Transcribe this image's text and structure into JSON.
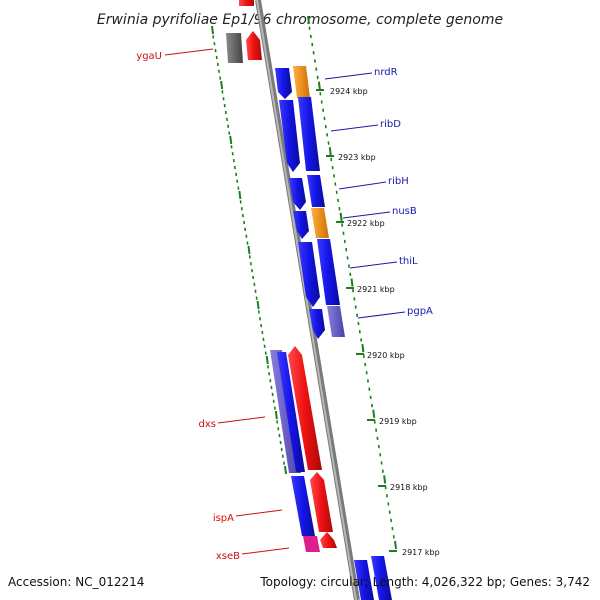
{
  "title": "Erwinia pyrifoliae Ep1/96 chromosome, complete genome",
  "accession_text": "Accession: NC_012214",
  "topology_text": "Topology: circular; Length: 4,026,322 bp; Genes: 3,742",
  "colors": {
    "backbone": "#8a8a8a",
    "tick": "#1e7d1e",
    "plus_strand_label": "#1a1aa8",
    "minus_strand_label": "#cc1111",
    "blue_gene": "#1414e6",
    "red_gene": "#ee1111",
    "orange_gene": "#f0900f",
    "purple_gene": "#6c5fc8",
    "magenta_gene": "#e0208a",
    "gray_gene": "#666666"
  },
  "kbp_markers": [
    "2924 kbp",
    "2923 kbp",
    "2922 kbp",
    "2921 kbp",
    "2920 kbp",
    "2919 kbp",
    "2918 kbp",
    "2917 kbp"
  ],
  "genes_right": [
    {
      "name": "nrdR",
      "color": "#1a1aa8"
    },
    {
      "name": "ribD",
      "color": "#1a1aa8"
    },
    {
      "name": "ribH",
      "color": "#1a1aa8"
    },
    {
      "name": "nusB",
      "color": "#1a1aa8"
    },
    {
      "name": "thiL",
      "color": "#1a1aa8"
    },
    {
      "name": "pgpA",
      "color": "#1a1aa8"
    }
  ],
  "genes_left": [
    {
      "name": "ygaU",
      "color": "#cc1111"
    },
    {
      "name": "dxs",
      "color": "#cc1111"
    },
    {
      "name": "ispA",
      "color": "#cc1111"
    },
    {
      "name": "xseB",
      "color": "#cc1111"
    }
  ]
}
